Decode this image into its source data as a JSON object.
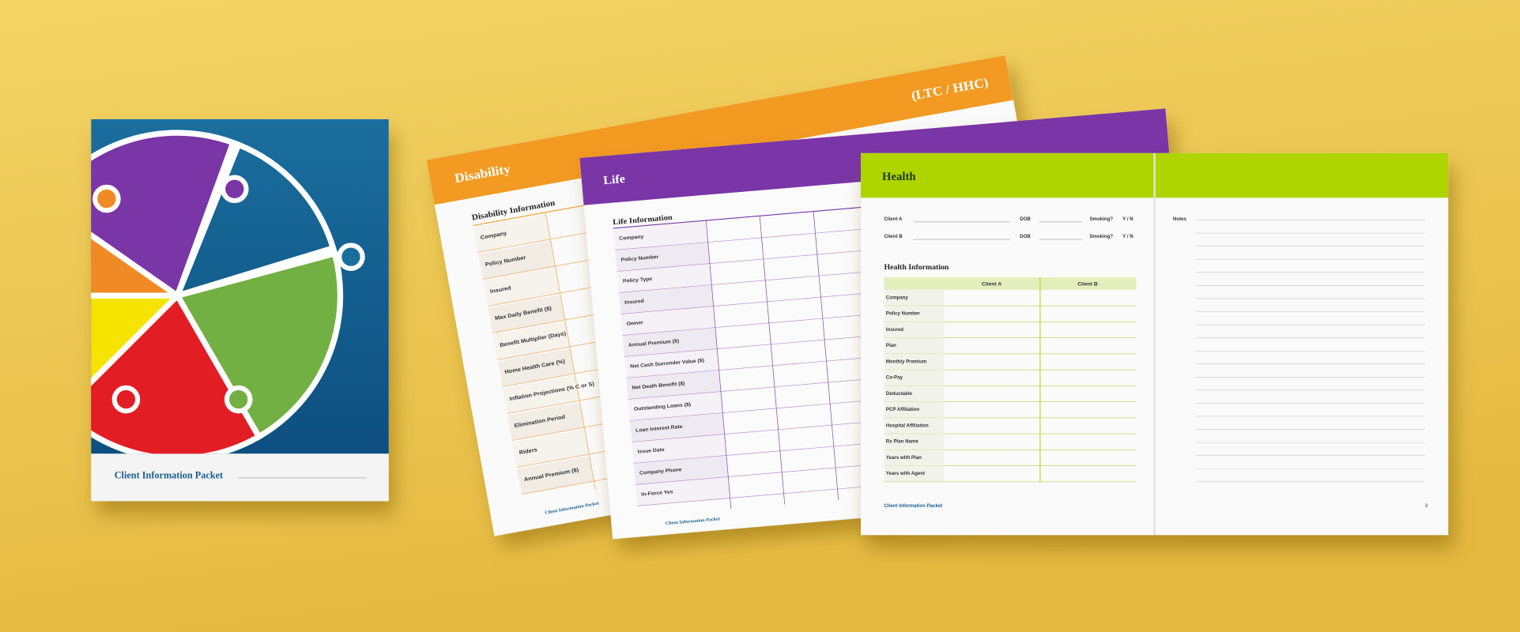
{
  "cover": {
    "title": "Client Information Packet"
  },
  "disability": {
    "title": "Disability",
    "subtitle": "(LTC / HHC)",
    "section": "Disability Information",
    "rows": [
      "Company",
      "Policy Number",
      "Insured",
      "Max Daily Benefit ($)",
      "Benefit Multiplier (Days)",
      "Home Health Care (%)",
      "Inflation Projections (% C or S)",
      "Elimination Period",
      "Riders",
      "Annual Premium ($)"
    ],
    "footer": "Client Information Packet"
  },
  "life": {
    "title": "Life",
    "section": "Life Information",
    "rows": [
      "Company",
      "Policy Number",
      "Policy Type",
      "Insured",
      "Owner",
      "Annual Premium ($)",
      "Net Cash Surrender Value ($)",
      "Net Death Benefit ($)",
      "Outstanding Loans ($)",
      "Loan Interest Rate",
      "Issue Date",
      "Company Phone",
      "In-Force Yes"
    ],
    "footer": "Client Information Packet"
  },
  "health": {
    "title": "Health",
    "clients": [
      {
        "label": "Client A",
        "dob": "DOB",
        "smoking": "Smoking?",
        "answer": "Y / N"
      },
      {
        "label": "Client B",
        "dob": "DOB",
        "smoking": "Smoking?",
        "answer": "Y / N"
      }
    ],
    "notes": "Notes",
    "section": "Health Information",
    "columns": [
      "Client A",
      "Client B"
    ],
    "rows": [
      "Company",
      "Policy Number",
      "Insured",
      "Plan",
      "Monthly Premium",
      "Co-Pay",
      "Deductable",
      "PCP Affiliation",
      "Hospital Affiliation",
      "Rx Plan Name",
      "Years with Plan",
      "Years with Agent"
    ],
    "footer": "Client Information Packet",
    "page": "3"
  }
}
